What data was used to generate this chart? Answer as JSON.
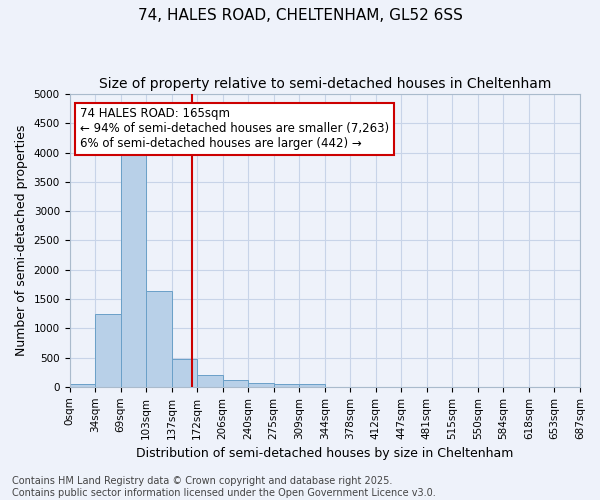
{
  "title_line1": "74, HALES ROAD, CHELTENHAM, GL52 6SS",
  "title_line2": "Size of property relative to semi-detached houses in Cheltenham",
  "xlabel": "Distribution of semi-detached houses by size in Cheltenham",
  "ylabel": "Number of semi-detached properties",
  "bin_labels": [
    "0sqm",
    "34sqm",
    "69sqm",
    "103sqm",
    "137sqm",
    "172sqm",
    "206sqm",
    "240sqm",
    "275sqm",
    "309sqm",
    "344sqm",
    "378sqm",
    "412sqm",
    "447sqm",
    "481sqm",
    "515sqm",
    "550sqm",
    "584sqm",
    "618sqm",
    "653sqm",
    "687sqm"
  ],
  "bar_values": [
    50,
    1240,
    4030,
    1640,
    480,
    200,
    110,
    70,
    55,
    40,
    0,
    0,
    0,
    0,
    0,
    0,
    0,
    0,
    0,
    0
  ],
  "bar_color": "#b8d0e8",
  "bar_edge_color": "#6aa0c8",
  "vline_color": "#cc0000",
  "annotation_text": "74 HALES ROAD: 165sqm\n← 94% of semi-detached houses are smaller (7,263)\n6% of semi-detached houses are larger (442) →",
  "annotation_box_color": "#ffffff",
  "annotation_box_edge_color": "#cc0000",
  "ylim": [
    0,
    5000
  ],
  "yticks": [
    0,
    500,
    1000,
    1500,
    2000,
    2500,
    3000,
    3500,
    4000,
    4500,
    5000
  ],
  "footer_text": "Contains HM Land Registry data © Crown copyright and database right 2025.\nContains public sector information licensed under the Open Government Licence v3.0.",
  "background_color": "#eef2fa",
  "grid_color": "#c8d4e8",
  "title_fontsize": 11,
  "subtitle_fontsize": 10,
  "axis_label_fontsize": 9,
  "tick_fontsize": 7.5,
  "annotation_fontsize": 8.5,
  "footer_fontsize": 7
}
